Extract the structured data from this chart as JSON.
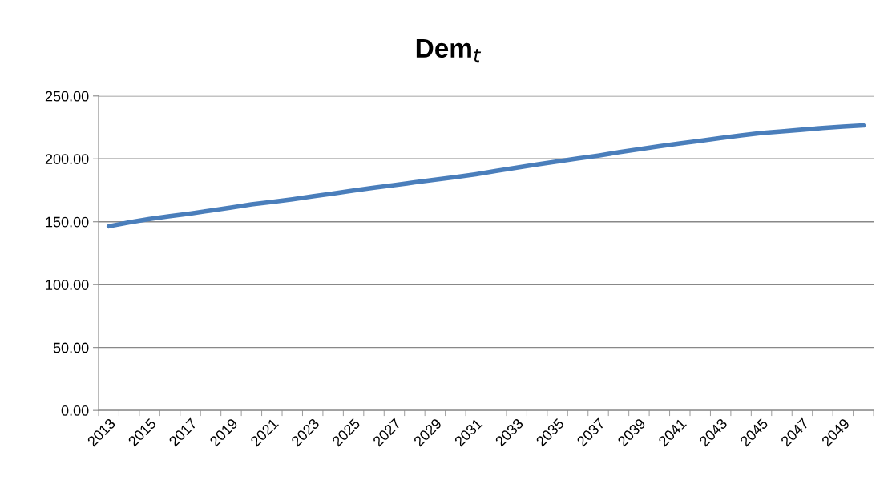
{
  "chart_data": {
    "type": "line",
    "title": "Dem$_{t}$",
    "categories": [
      "2013",
      null,
      "2015",
      null,
      "2017",
      null,
      "2019",
      null,
      "2021",
      null,
      "2023",
      null,
      "2025",
      null,
      "2027",
      null,
      "2029",
      null,
      "2031",
      null,
      "2033",
      null,
      "2035",
      null,
      "2037",
      null,
      "2039",
      null,
      "2041",
      null,
      "2043",
      null,
      "2045",
      null,
      "2047",
      null,
      "2049",
      null
    ],
    "series": [
      {
        "color": "#4a7ebb",
        "values": [
          146.4,
          149.5,
          152.2,
          154.5,
          156.6,
          158.9,
          161.3,
          163.8,
          165.7,
          167.9,
          170.2,
          172.5,
          174.8,
          177.0,
          179.1,
          181.3,
          183.4,
          185.5,
          187.8,
          190.4,
          193.0,
          195.5,
          198.0,
          200.3,
          202.6,
          205.2,
          207.6,
          210.0,
          212.3,
          214.3,
          216.6,
          218.7,
          220.5,
          221.9,
          223.2,
          224.5,
          225.6,
          226.6
        ]
      }
    ],
    "ylim": [
      0,
      250
    ],
    "yticks": [
      {
        "value": 0,
        "label": "0.00"
      },
      {
        "value": 50,
        "label": "50.00"
      },
      {
        "value": 100,
        "label": "100.00"
      },
      {
        "value": 150,
        "label": "150.00"
      },
      {
        "value": 200,
        "label": "200.00"
      },
      {
        "value": 250,
        "label": "250.00"
      }
    ],
    "grid": "y",
    "marker": "none",
    "line_style": "solid"
  }
}
